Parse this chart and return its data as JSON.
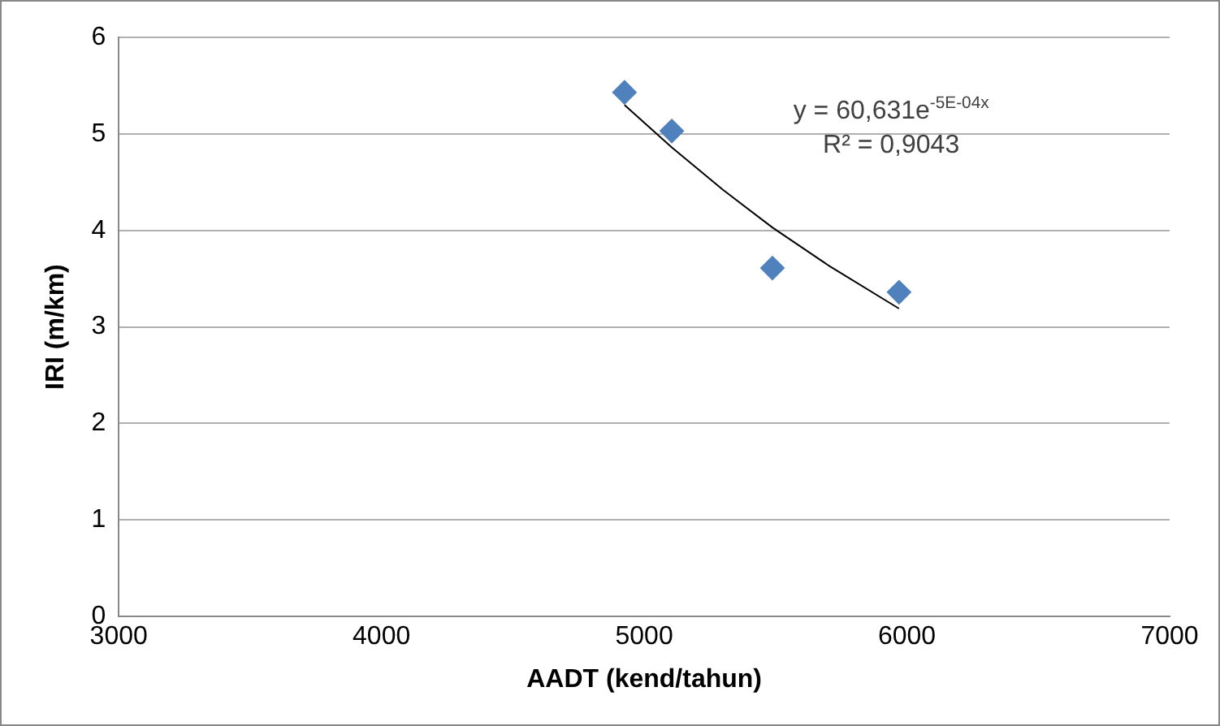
{
  "chart_data": {
    "type": "scatter",
    "xlabel": "AADT (kend/tahun)",
    "ylabel": "IRI (m/km)",
    "series": [
      {
        "color": "#4f81bd",
        "marker": "diamond",
        "x": [
          4925,
          5105,
          5488,
          5970
        ],
        "values": [
          5.43,
          5.03,
          3.61,
          3.36
        ]
      },
      {
        "type": "line",
        "color": "#000000",
        "marker": "none",
        "x": [
          4925,
          5105,
          5300,
          5488,
          5700,
          5970
        ],
        "values": [
          5.3,
          4.86,
          4.42,
          4.03,
          3.64,
          3.19
        ]
      }
    ],
    "xlim": [
      3000,
      7000
    ],
    "xticks": [
      3000,
      4000,
      5000,
      6000,
      7000
    ],
    "ylim": [
      0,
      6
    ],
    "yticks": [
      0,
      1,
      2,
      3,
      4,
      5,
      6
    ],
    "grid": "y",
    "legend": false,
    "annotations": [
      "y = 60,631e$^{-5E-04x}$",
      "R² = 0,9043"
    ]
  }
}
